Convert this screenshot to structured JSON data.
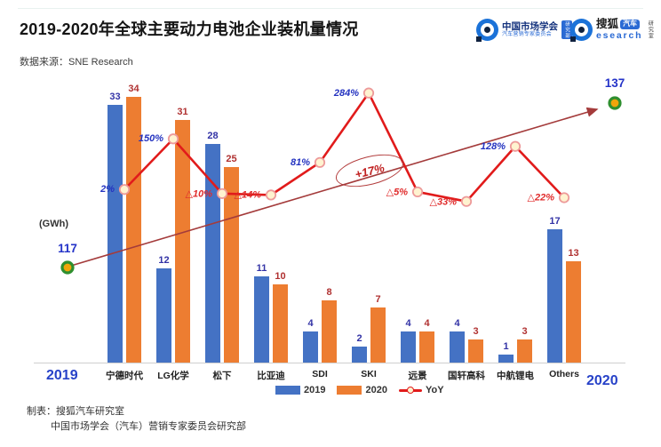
{
  "page": {
    "title": "2019-2020年全球主要动力电池企业装机量情况",
    "source": "数据来源：SNE Research",
    "footer1": "制表：搜狐汽车研究室",
    "footer2": "中国市场学会（汽车）营销专家委员会研究部"
  },
  "logos": {
    "cms": {
      "name": "中国市场学会",
      "sub": "汽车营销专家委员会",
      "badge": "研究部"
    },
    "sohu": {
      "name": "搜狐",
      "auto_badge": "汽车",
      "research": "esearch",
      "side": "研究室"
    }
  },
  "chart_data": {
    "type": "bar",
    "unit_label": "(GWh)",
    "categories": [
      "宁德时代",
      "LG化学",
      "松下",
      "比亚迪",
      "SDI",
      "SKI",
      "远景",
      "国轩高科",
      "中航锂电",
      "Others"
    ],
    "series": [
      {
        "name": "2019",
        "type": "bar",
        "color": "#4472C4",
        "label_color": "#3333A6",
        "values": [
          33,
          12,
          28,
          11,
          4,
          2,
          4,
          4,
          1,
          17
        ]
      },
      {
        "name": "2020",
        "type": "bar",
        "color": "#ED7D31",
        "label_color": "#B03131",
        "values": [
          34,
          31,
          25,
          10,
          8,
          7,
          4,
          3,
          3,
          13
        ]
      },
      {
        "name": "YoY",
        "type": "line",
        "color": "#E11B1B",
        "marker_fill": "#FFF3D0",
        "marker_stroke": "#ED9A9A",
        "label_color_pos": "#2433C0",
        "label_color_neg": "#E02B2B",
        "values": [
          2,
          150,
          -10,
          -14,
          81,
          284,
          -5,
          -33,
          128,
          -22
        ],
        "labels": [
          "2%",
          "150%",
          "△10%",
          "△14%",
          "81%",
          "284%",
          "△5%",
          "△33%",
          "128%",
          "△22%"
        ]
      }
    ],
    "totals": {
      "start_year": "2019",
      "start_value": 117,
      "end_year": "2020",
      "end_value": 137,
      "marker_fill": "#F0A50A",
      "marker_stroke": "#2F8F2F",
      "arrow_color": "#A43B3B"
    },
    "annotation": "+17%",
    "legend": [
      "2019",
      "2020",
      "YoY"
    ],
    "ylim": [
      0,
      40
    ],
    "grid": false,
    "legend_position": "bottom"
  }
}
